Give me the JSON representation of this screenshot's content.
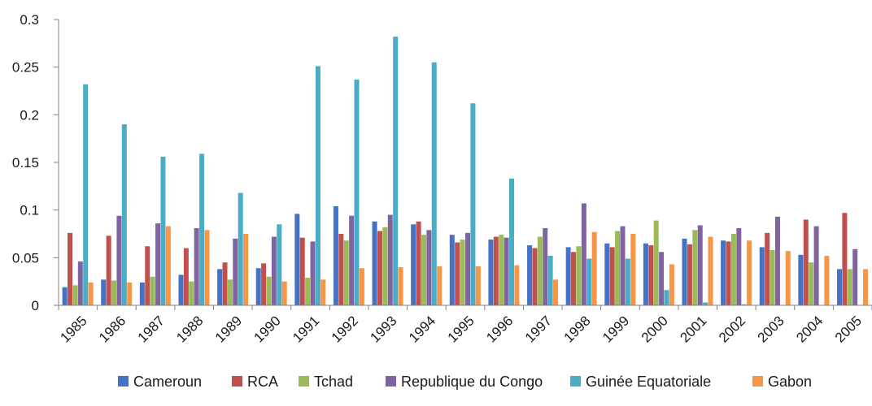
{
  "chart_data": {
    "type": "bar",
    "title": "",
    "xlabel": "",
    "ylabel": "",
    "ylim": [
      0,
      0.3
    ],
    "yticks": [
      "0",
      "0.05",
      "0.1",
      "0.15",
      "0.2",
      "0.25",
      "0.3"
    ],
    "grid": false,
    "legend_position": "bottom",
    "categories": [
      "1985",
      "1986",
      "1987",
      "1988",
      "1989",
      "1990",
      "1991",
      "1992",
      "1993",
      "1994",
      "1995",
      "1996",
      "1997",
      "1998",
      "1999",
      "2000",
      "2001",
      "2002",
      "2003",
      "2004",
      "2005"
    ],
    "series": [
      {
        "name": "Cameroun",
        "color": "#4472C4",
        "values": [
          0.019,
          0.027,
          0.024,
          0.032,
          0.038,
          0.039,
          0.096,
          0.104,
          0.088,
          0.085,
          0.074,
          0.069,
          0.063,
          0.061,
          0.065,
          0.065,
          0.07,
          0.068,
          0.061,
          0.053,
          0.038
        ]
      },
      {
        "name": "RCA",
        "color": "#C0504D",
        "values": [
          0.076,
          0.073,
          0.062,
          0.06,
          0.045,
          0.044,
          0.071,
          0.075,
          0.078,
          0.088,
          0.066,
          0.072,
          0.06,
          0.056,
          0.061,
          0.063,
          0.064,
          0.067,
          0.076,
          0.09,
          0.097
        ]
      },
      {
        "name": "Tchad",
        "color": "#9BBB59",
        "values": [
          0.021,
          0.026,
          0.03,
          0.025,
          0.027,
          0.03,
          0.029,
          0.068,
          0.082,
          0.074,
          0.069,
          0.074,
          0.072,
          0.062,
          0.078,
          0.089,
          0.079,
          0.075,
          0.058,
          0.045,
          0.038
        ]
      },
      {
        "name": "Republique du Congo",
        "color": "#8064A2",
        "values": [
          0.046,
          0.094,
          0.086,
          0.081,
          0.07,
          0.072,
          0.067,
          0.094,
          0.095,
          0.079,
          0.076,
          0.071,
          0.081,
          0.107,
          0.083,
          0.056,
          0.084,
          0.081,
          0.093,
          0.083,
          0.059
        ]
      },
      {
        "name": "Guinée Equatoriale",
        "color": "#4BACC6",
        "values": [
          0.232,
          0.19,
          0.156,
          0.159,
          0.118,
          0.085,
          0.251,
          0.237,
          0.282,
          0.255,
          0.212,
          0.133,
          0.052,
          0.049,
          0.049,
          0.016,
          0.003,
          0.001,
          0.0,
          0.0,
          0.0
        ]
      },
      {
        "name": "Gabon",
        "color": "#F79646",
        "values": [
          0.024,
          0.024,
          0.083,
          0.079,
          0.075,
          0.025,
          0.027,
          0.039,
          0.04,
          0.041,
          0.041,
          0.042,
          0.027,
          0.077,
          0.075,
          0.043,
          0.072,
          0.068,
          0.057,
          0.052,
          0.038
        ]
      }
    ]
  }
}
